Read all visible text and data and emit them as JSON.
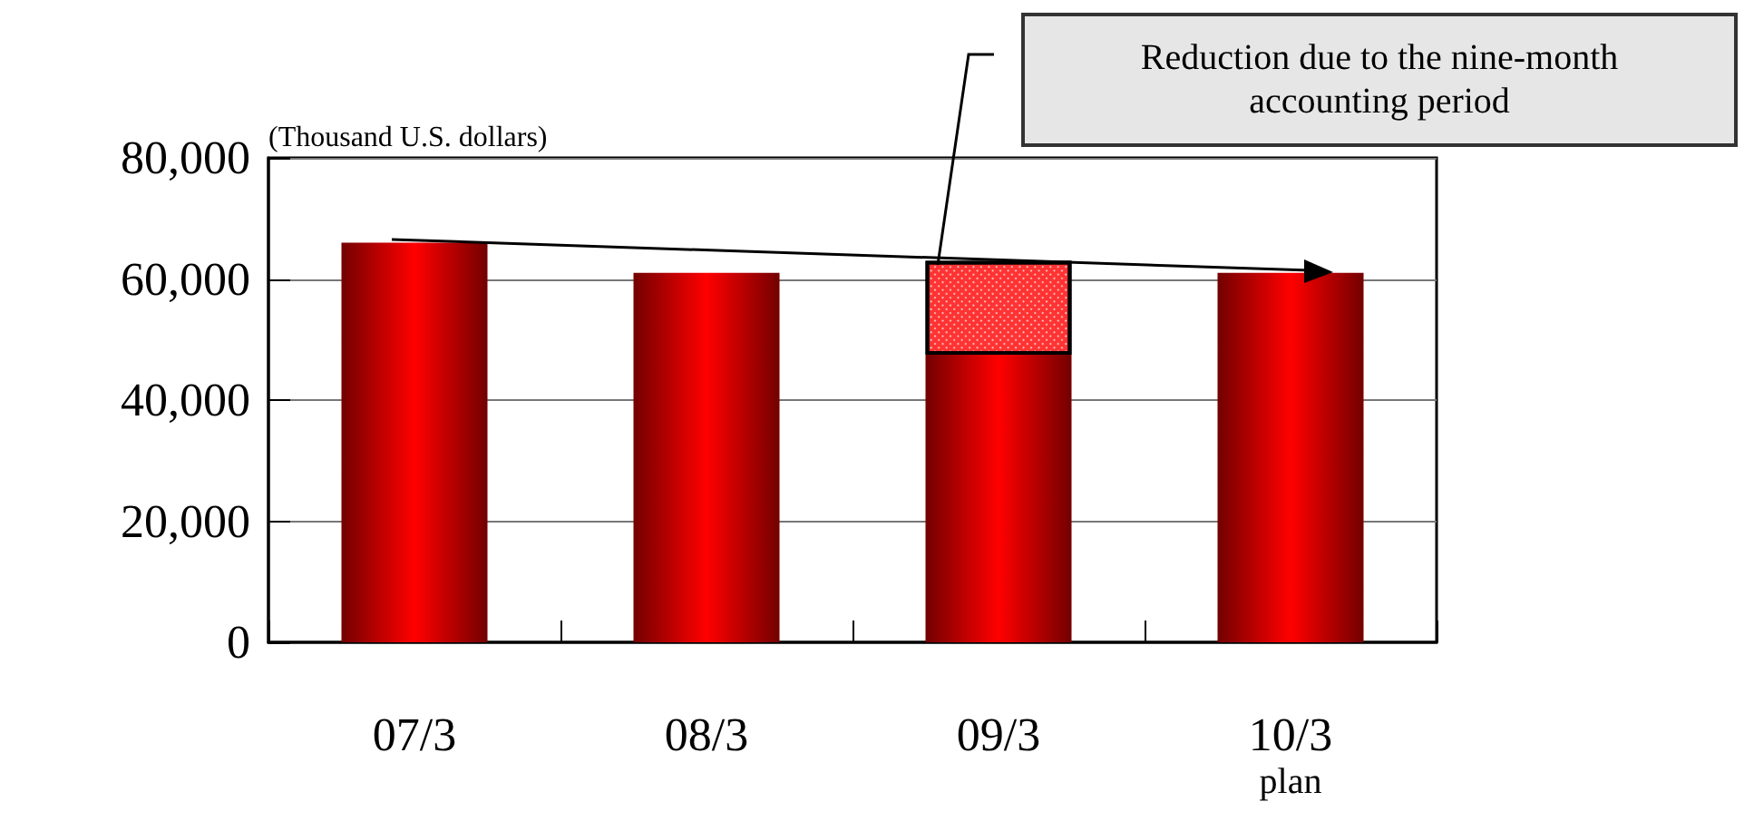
{
  "chart_data": {
    "type": "bar",
    "stacked": true,
    "ylabel": "(Thousand U.S. dollars)",
    "categories": [
      "07/3",
      "08/3",
      "09/3",
      "10/3\nplan"
    ],
    "series": [
      {
        "color": "#ff0000",
        "values": [
          66000,
          61000,
          47500,
          61000
        ]
      },
      {
        "color": "#ff3333",
        "values": [
          null,
          null,
          15500,
          null
        ]
      }
    ],
    "ylim": [
      0,
      80000
    ],
    "yticks": [
      {
        "value": 0,
        "label": "0"
      },
      {
        "value": 20000,
        "label": "20,000"
      },
      {
        "value": 40000,
        "label": "40,000"
      },
      {
        "value": 60000,
        "label": "60,000"
      },
      {
        "value": 80000,
        "label": "80,000"
      }
    ],
    "grid": "y",
    "annotations": [
      "Reduction due to the nine-month accounting period"
    ]
  }
}
